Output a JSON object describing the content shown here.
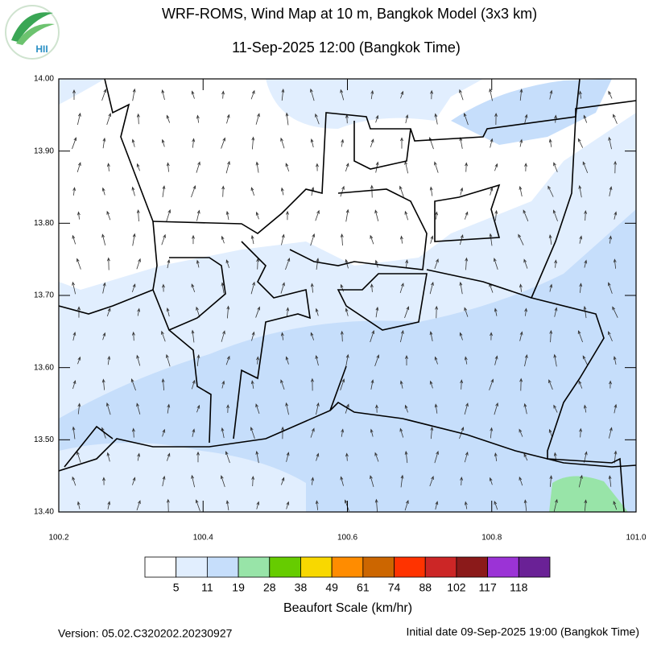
{
  "header": {
    "title": "WRF-ROMS, Wind Map at 10 m, Bangkok Model (3x3 km)",
    "subtitle": "11-Sep-2025 12:00 (Bangkok Time)",
    "logo": "HII"
  },
  "map": {
    "xlim": [
      100.2,
      101.0
    ],
    "ylim": [
      13.4,
      14.0
    ],
    "xticks": [
      100.2,
      100.4,
      100.6,
      100.8,
      {
        "value": 101.0,
        "label": "101.0"
      }
    ],
    "yticks": [
      {
        "value": 13.4,
        "label": "13.40"
      },
      {
        "value": 13.5,
        "label": "13.50"
      },
      {
        "value": 13.6,
        "label": "13.60"
      },
      {
        "value": 13.7,
        "label": "13.70"
      },
      {
        "value": 13.8,
        "label": "13.80"
      },
      {
        "value": 13.9,
        "label": "13.90"
      },
      {
        "value": 14.0,
        "label": "14.00"
      }
    ]
  },
  "colorbar": {
    "label": "Beaufort Scale (km/hr)",
    "levels": [
      5,
      11,
      19,
      28,
      38,
      49,
      61,
      74,
      88,
      102,
      117,
      118
    ],
    "colors": [
      "#ffffff",
      "#e1eefe",
      "#c6defb",
      "#98e4a8",
      "#66cc00",
      "#f8d800",
      "#ff8c00",
      "#cc6600",
      "#ff3300",
      "#cc2626",
      "#8b1a1a",
      "#9b33d6",
      "#6a2196"
    ]
  },
  "footer": {
    "version": "Version: 05.02.C320202.20230927",
    "initial": "Initial date 09-Sep-2025 19:00 (Bangkok Time)"
  }
}
